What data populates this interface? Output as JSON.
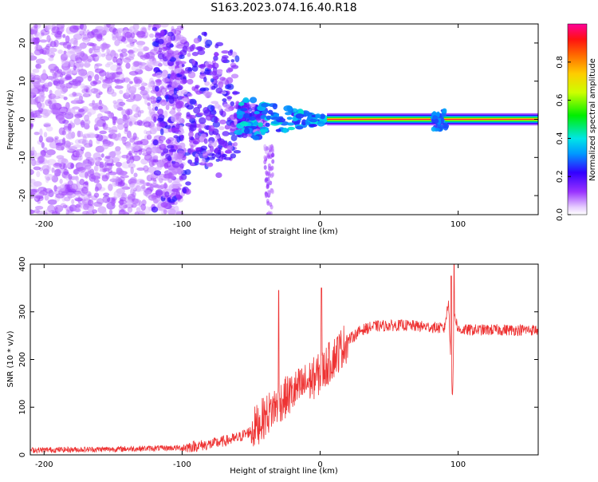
{
  "title": "S163.2023.074.16.40.R18",
  "chart_data": [
    {
      "type": "heatmap",
      "xlabel": "Height of straight line (km)",
      "ylabel": "Frequency (Hz)",
      "xlim": [
        -210,
        158
      ],
      "ylim": [
        -25,
        25
      ],
      "xticks": [
        -200,
        -100,
        0,
        100
      ],
      "yticks": [
        -20,
        -10,
        0,
        10,
        20
      ],
      "grid": false,
      "colorbar": {
        "label": "Normalized spectral amplitude",
        "range": [
          0,
          1
        ],
        "ticks": [
          0.0,
          0.2,
          0.4,
          0.6,
          0.8
        ],
        "colormap": "white-purple-blue-cyan-green-yellow-orange-red-magenta"
      },
      "features": [
        {
          "name": "noise floor",
          "x_range": [
            -210,
            -100
          ],
          "freq_range": [
            -25,
            25
          ],
          "amplitude": 0.1
        },
        {
          "name": "scattered return",
          "x_range": [
            -120,
            -40
          ],
          "freq_range": [
            -25,
            22
          ],
          "amplitude": 0.2
        },
        {
          "name": "converging signal",
          "x_range": [
            -60,
            5
          ],
          "freq_center": 0,
          "amplitude": 0.3
        },
        {
          "name": "steady carrier",
          "x_range": [
            5,
            158
          ],
          "freq_center": 0,
          "amplitude": 1.0
        },
        {
          "name": "disturbance",
          "x_range": [
            82,
            92
          ],
          "freq_range": [
            -3,
            3
          ],
          "amplitude": 0.3
        }
      ]
    },
    {
      "type": "line",
      "xlabel": "Height of straight line (km)",
      "ylabel": "SNR (10 * v/v)",
      "xlim": [
        -210,
        158
      ],
      "ylim": [
        0,
        400
      ],
      "xticks": [
        -200,
        -100,
        0,
        100
      ],
      "yticks": [
        0,
        100,
        200,
        300,
        400
      ],
      "grid": false,
      "series": [
        {
          "color": "#ee3333",
          "x": [
            -210,
            -150,
            -100,
            -80,
            -60,
            -50,
            -40,
            -30,
            -20,
            -10,
            0,
            10,
            20,
            30,
            40,
            60,
            80,
            90,
            93,
            96,
            97,
            100,
            120,
            158
          ],
          "y": [
            10,
            12,
            15,
            22,
            35,
            50,
            80,
            110,
            130,
            150,
            170,
            205,
            240,
            262,
            270,
            272,
            268,
            265,
            320,
            110,
            300,
            262,
            262,
            262
          ],
          "spikes": [
            {
              "x": -30,
              "y": 345
            },
            {
              "x": 1,
              "y": 350
            },
            {
              "x": 95,
              "y": 375
            },
            {
              "x": 97,
              "y": 400
            }
          ],
          "noise": 12
        }
      ]
    }
  ]
}
